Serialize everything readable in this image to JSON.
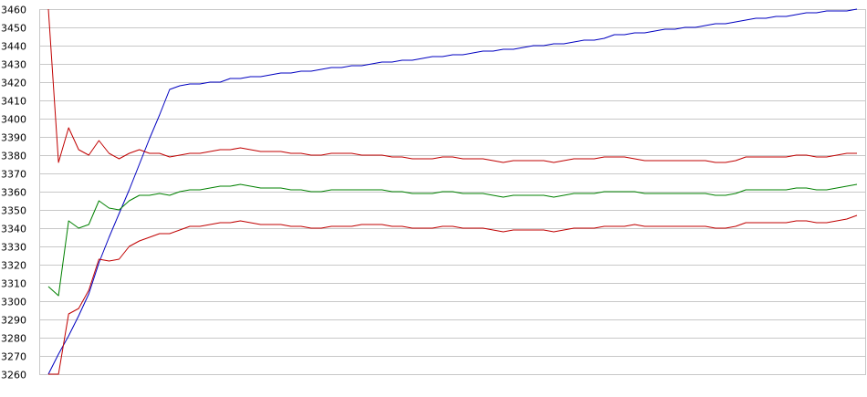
{
  "chart_data": {
    "type": "line",
    "title": "",
    "xlabel": "",
    "ylabel": "",
    "ylim": [
      3260,
      3460
    ],
    "yticks": [
      3260,
      3270,
      3280,
      3290,
      3300,
      3310,
      3320,
      3330,
      3340,
      3350,
      3360,
      3370,
      3380,
      3390,
      3400,
      3410,
      3420,
      3430,
      3440,
      3450,
      3460
    ],
    "grid": true,
    "legend": "none",
    "x": [
      0,
      1,
      2,
      3,
      4,
      5,
      6,
      7,
      8,
      9,
      10,
      11,
      12,
      13,
      14,
      15,
      16,
      17,
      18,
      19,
      20,
      21,
      22,
      23,
      24,
      25,
      26,
      27,
      28,
      29,
      30,
      31,
      32,
      33,
      34,
      35,
      36,
      37,
      38,
      39,
      40,
      41,
      42,
      43,
      44,
      45,
      46,
      47,
      48,
      49,
      50,
      51,
      52,
      53,
      54,
      55,
      56,
      57,
      58,
      59,
      60,
      61,
      62,
      63,
      64,
      65,
      66,
      67,
      68,
      69,
      70,
      71,
      72,
      73,
      74,
      75,
      76,
      77,
      78,
      79,
      80
    ],
    "series": [
      {
        "color": "#0000c0",
        "values": [
          3260,
          3271,
          3281,
          3292,
          3304,
          3321,
          3335,
          3348,
          3361,
          3375,
          3389,
          3402,
          3416,
          3418,
          3419,
          3419,
          3420,
          3420,
          3422,
          3422,
          3423,
          3423,
          3424,
          3425,
          3425,
          3426,
          3426,
          3427,
          3428,
          3428,
          3429,
          3429,
          3430,
          3431,
          3431,
          3432,
          3432,
          3433,
          3434,
          3434,
          3435,
          3435,
          3436,
          3437,
          3437,
          3438,
          3438,
          3439,
          3440,
          3440,
          3441,
          3441,
          3442,
          3443,
          3443,
          3444,
          3446,
          3446,
          3447,
          3447,
          3448,
          3449,
          3449,
          3450,
          3450,
          3451,
          3452,
          3452,
          3453,
          3454,
          3455,
          3455,
          3456,
          3456,
          3457,
          3458,
          3458,
          3459,
          3459,
          3459,
          3460
        ]
      },
      {
        "color": "#c00000",
        "values": [
          3460,
          3376,
          3395,
          3383,
          3380,
          3388,
          3381,
          3378,
          3381,
          3383,
          3381,
          3381,
          3379,
          3380,
          3381,
          3381,
          3382,
          3383,
          3383,
          3384,
          3383,
          3382,
          3382,
          3382,
          3381,
          3381,
          3380,
          3380,
          3381,
          3381,
          3381,
          3380,
          3380,
          3380,
          3379,
          3379,
          3378,
          3378,
          3378,
          3379,
          3379,
          3378,
          3378,
          3378,
          3377,
          3376,
          3377,
          3377,
          3377,
          3377,
          3376,
          3377,
          3378,
          3378,
          3378,
          3379,
          3379,
          3379,
          3378,
          3377,
          3377,
          3377,
          3377,
          3377,
          3377,
          3377,
          3376,
          3376,
          3377,
          3379,
          3379,
          3379,
          3379,
          3379,
          3380,
          3380,
          3379,
          3379,
          3380,
          3381,
          3381
        ]
      },
      {
        "color": "#008000",
        "values": [
          3308,
          3303,
          3344,
          3340,
          3342,
          3355,
          3351,
          3350,
          3355,
          3358,
          3358,
          3359,
          3358,
          3360,
          3361,
          3361,
          3362,
          3363,
          3363,
          3364,
          3363,
          3362,
          3362,
          3362,
          3361,
          3361,
          3360,
          3360,
          3361,
          3361,
          3361,
          3361,
          3361,
          3361,
          3360,
          3360,
          3359,
          3359,
          3359,
          3360,
          3360,
          3359,
          3359,
          3359,
          3358,
          3357,
          3358,
          3358,
          3358,
          3358,
          3357,
          3358,
          3359,
          3359,
          3359,
          3360,
          3360,
          3360,
          3360,
          3359,
          3359,
          3359,
          3359,
          3359,
          3359,
          3359,
          3358,
          3358,
          3359,
          3361,
          3361,
          3361,
          3361,
          3361,
          3362,
          3362,
          3361,
          3361,
          3362,
          3363,
          3364
        ]
      },
      {
        "color": "#c00000",
        "values": [
          3260,
          3260,
          3293,
          3296,
          3306,
          3323,
          3322,
          3323,
          3330,
          3333,
          3335,
          3337,
          3337,
          3339,
          3341,
          3341,
          3342,
          3343,
          3343,
          3344,
          3343,
          3342,
          3342,
          3342,
          3341,
          3341,
          3340,
          3340,
          3341,
          3341,
          3341,
          3342,
          3342,
          3342,
          3341,
          3341,
          3340,
          3340,
          3340,
          3341,
          3341,
          3340,
          3340,
          3340,
          3339,
          3338,
          3339,
          3339,
          3339,
          3339,
          3338,
          3339,
          3340,
          3340,
          3340,
          3341,
          3341,
          3341,
          3342,
          3341,
          3341,
          3341,
          3341,
          3341,
          3341,
          3341,
          3340,
          3340,
          3341,
          3343,
          3343,
          3343,
          3343,
          3343,
          3344,
          3344,
          3343,
          3343,
          3344,
          3345,
          3347
        ]
      }
    ]
  }
}
